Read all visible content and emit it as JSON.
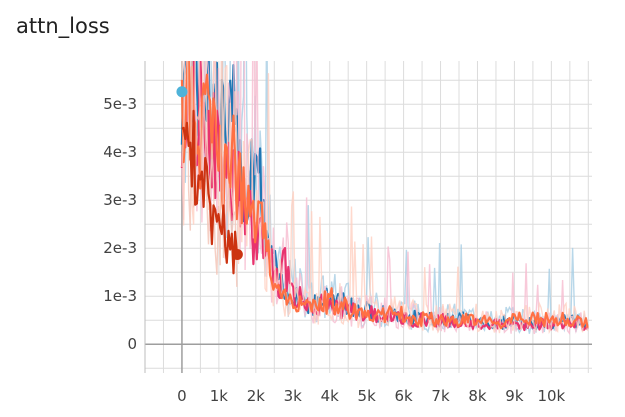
{
  "chart_data": {
    "type": "line",
    "title": "attn_loss",
    "xlabel": "",
    "ylabel": "",
    "xlim": [
      -1000,
      11100
    ],
    "ylim": [
      -0.0006,
      0.0059
    ],
    "x_ticks": [
      0,
      1000,
      2000,
      3000,
      4000,
      5000,
      6000,
      7000,
      8000,
      9000,
      10000
    ],
    "x_tick_labels": [
      "0",
      "1k",
      "2k",
      "3k",
      "4k",
      "5k",
      "6k",
      "7k",
      "8k",
      "9k",
      "10k"
    ],
    "y_ticks": [
      0,
      0.001,
      0.002,
      0.003,
      0.004,
      0.005
    ],
    "y_tick_labels": [
      "0",
      "1e-3",
      "2e-3",
      "3e-3",
      "4e-3",
      "5e-3"
    ],
    "grid": true,
    "series": [
      {
        "color": "#1f77b4",
        "raw_color": "#a6cde3",
        "x": [
          0,
          200,
          400,
          600,
          800,
          1000,
          1200,
          1400,
          1600,
          1800,
          2000,
          2200,
          2400,
          2600,
          2800,
          3000,
          3500,
          4000,
          4500,
          5000,
          5500,
          6000,
          6500,
          7000,
          7500,
          8000,
          8500,
          9000,
          9500,
          10000,
          10500,
          11000
        ],
        "y": [
          0.0052,
          0.0058,
          0.0051,
          0.0056,
          0.0049,
          0.0047,
          0.004,
          0.0044,
          0.0036,
          0.003,
          0.0042,
          0.0024,
          0.0019,
          0.0013,
          0.0009,
          0.0011,
          0.0008,
          0.0009,
          0.0008,
          0.0007,
          0.0006,
          0.0006,
          0.0005,
          0.0005,
          0.0005,
          0.0005,
          0.0004,
          0.0005,
          0.0004,
          0.0004,
          0.0005,
          0.0004
        ]
      },
      {
        "color": "#e8336e",
        "raw_color": "#f6bcd0",
        "x": [
          0,
          200,
          400,
          600,
          800,
          1000,
          1200,
          1400,
          1600,
          1800,
          2000,
          2200,
          2400,
          2600,
          2800,
          3000,
          3500,
          4000,
          4500,
          5000,
          5500,
          6000,
          6500,
          7000,
          7500,
          8000,
          8500,
          9000,
          9500,
          10000,
          10500,
          11000
        ],
        "y": [
          0.0045,
          0.0054,
          0.0043,
          0.005,
          0.0041,
          0.0038,
          0.0032,
          0.0036,
          0.0029,
          0.0025,
          0.0021,
          0.0023,
          0.0017,
          0.0012,
          0.0016,
          0.001,
          0.0008,
          0.0008,
          0.0007,
          0.0006,
          0.0006,
          0.0005,
          0.0005,
          0.0005,
          0.0004,
          0.0004,
          0.0004,
          0.0004,
          0.0004,
          0.0004,
          0.0004,
          0.0004
        ]
      },
      {
        "color": "#ff7043",
        "raw_color": "#ffd0c0",
        "x": [
          0,
          200,
          400,
          600,
          800,
          1000,
          1200,
          1400,
          1600,
          1800,
          2000,
          2200,
          2400,
          2600,
          2800,
          3000,
          3500,
          4000,
          4500,
          5000,
          5500,
          6000,
          6500,
          7000,
          7500,
          8000,
          8500,
          9000,
          9500,
          10000,
          10500,
          11000
        ],
        "y": [
          0.0043,
          0.005,
          0.0041,
          0.0046,
          0.0039,
          0.0042,
          0.0034,
          0.0036,
          0.003,
          0.0027,
          0.0025,
          0.0022,
          0.0016,
          0.0011,
          0.0009,
          0.0009,
          0.0007,
          0.0009,
          0.0007,
          0.0006,
          0.0006,
          0.0006,
          0.0005,
          0.0005,
          0.0005,
          0.0005,
          0.0004,
          0.0005,
          0.0005,
          0.0005,
          0.0005,
          0.0004
        ]
      },
      {
        "color": "#cc3311",
        "raw_color": "#f2c3b5",
        "x": [
          0,
          100,
          200,
          300,
          400,
          500,
          600,
          700,
          800,
          900,
          1000,
          1100,
          1200,
          1300,
          1400,
          1500
        ],
        "y": [
          0.0043,
          0.0052,
          0.0045,
          0.0039,
          0.0036,
          0.0033,
          0.0031,
          0.0029,
          0.0027,
          0.0025,
          0.0024,
          0.0023,
          0.0022,
          0.0021,
          0.0019,
          0.0018
        ]
      }
    ],
    "markers": [
      {
        "x": 0,
        "y": 0.00526,
        "color": "#4fb3d9"
      },
      {
        "x": 1500,
        "y": 0.00187,
        "color": "#cc3311"
      }
    ]
  }
}
